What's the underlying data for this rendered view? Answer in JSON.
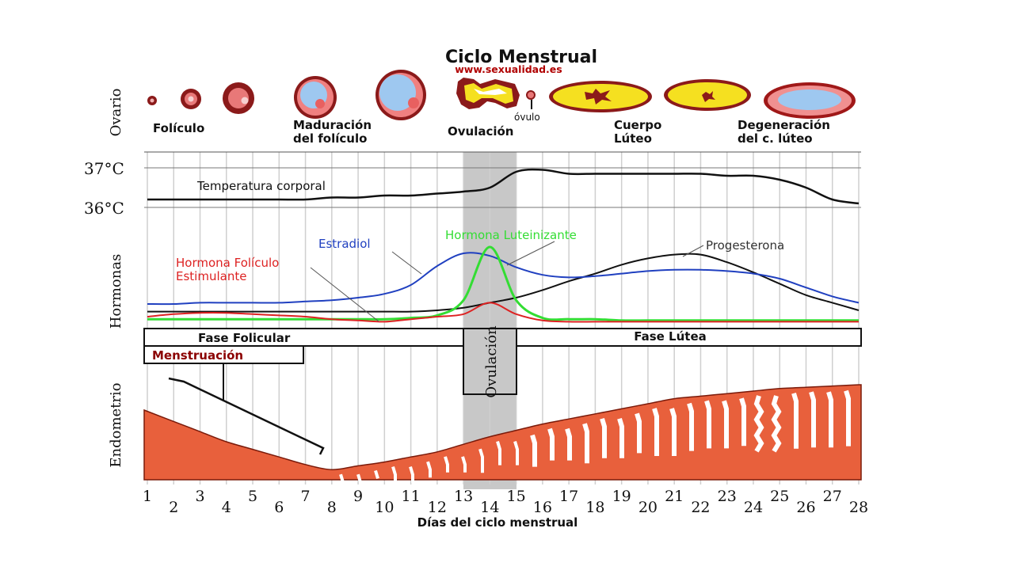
{
  "title": "Ciclo Menstrual",
  "website": "www.sexualidad.es",
  "ovary_label": "Ovario",
  "ovary_stages": {
    "foliculo": "Folículo",
    "maduracion_1": "Maduración",
    "maduracion_2": "del folículo",
    "ovulo": "óvulo",
    "ovulacion": "Ovulación",
    "cuerpo_1": "Cuerpo",
    "cuerpo_2": "Lúteo",
    "degeneracion_1": "Degeneración",
    "degeneracion_2": "del c. lúteo"
  },
  "temperature": {
    "label": "Temperatura corporal",
    "high": "37°C",
    "low": "36°C"
  },
  "hormones": {
    "axis_label": "Hormonas",
    "estradiol": "Estradiol",
    "lh": "Hormona Luteinizante",
    "progesterone": "Progesterona",
    "fsh_1": "Hormona Folículo",
    "fsh_2": "Estimulante"
  },
  "phases": {
    "follicular": "Fase Folicular",
    "ovulation": "Ovulación",
    "luteal": "Fase Lútea",
    "menstruation": "Menstruación"
  },
  "endometrium_label": "Endometrio",
  "x_axis_label": "Días del ciclo menstrual",
  "colors": {
    "estradiol": "#2040c0",
    "lh": "#33dd33",
    "fsh": "#dd2222",
    "progesterone": "#111111",
    "endometrium": "#e8603c",
    "ovulation_band": "#c8c8c8"
  },
  "chart_data": {
    "type": "line",
    "x": [
      1,
      2,
      3,
      4,
      5,
      6,
      7,
      8,
      9,
      10,
      11,
      12,
      13,
      14,
      15,
      16,
      17,
      18,
      19,
      20,
      21,
      22,
      23,
      24,
      25,
      26,
      27,
      28
    ],
    "xlabel": "Días del ciclo menstrual",
    "ovulation_days": [
      13,
      15
    ],
    "series": [
      {
        "name": "Temperatura corporal",
        "unit": "°C",
        "values": [
          36.2,
          36.2,
          36.2,
          36.2,
          36.2,
          36.2,
          36.2,
          36.25,
          36.25,
          36.3,
          36.3,
          36.35,
          36.4,
          36.5,
          36.9,
          36.95,
          36.85,
          36.85,
          36.85,
          36.85,
          36.85,
          36.85,
          36.8,
          36.8,
          36.7,
          36.5,
          36.2,
          36.1
        ]
      },
      {
        "name": "Estradiol",
        "values": [
          1.5,
          1.5,
          1.6,
          1.6,
          1.6,
          1.6,
          1.7,
          1.8,
          2.0,
          2.3,
          3.0,
          4.5,
          5.5,
          5.3,
          4.4,
          3.8,
          3.6,
          3.7,
          3.9,
          4.1,
          4.2,
          4.2,
          4.1,
          3.9,
          3.5,
          2.8,
          2.1,
          1.6
        ]
      },
      {
        "name": "Hormona Luteinizante",
        "values": [
          0.3,
          0.3,
          0.3,
          0.3,
          0.3,
          0.3,
          0.3,
          0.3,
          0.3,
          0.3,
          0.4,
          0.6,
          1.8,
          6.0,
          1.8,
          0.4,
          0.3,
          0.3,
          0.2,
          0.2,
          0.2,
          0.2,
          0.2,
          0.2,
          0.2,
          0.2,
          0.2,
          0.2
        ]
      },
      {
        "name": "Hormona Folículo Estimulante",
        "values": [
          0.5,
          0.7,
          0.8,
          0.8,
          0.7,
          0.6,
          0.5,
          0.3,
          0.2,
          0.1,
          0.3,
          0.5,
          0.7,
          1.6,
          0.7,
          0.2,
          0.1,
          0.1,
          0.1,
          0.1,
          0.1,
          0.1,
          0.1,
          0.1,
          0.1,
          0.1,
          0.1,
          0.1
        ]
      },
      {
        "name": "Progesterona",
        "values": [
          0.9,
          0.9,
          0.9,
          0.9,
          0.9,
          0.9,
          0.9,
          0.9,
          0.9,
          0.9,
          0.9,
          1.0,
          1.2,
          1.6,
          2.0,
          2.6,
          3.3,
          3.9,
          4.6,
          5.1,
          5.4,
          5.4,
          4.8,
          4.0,
          3.1,
          2.2,
          1.6,
          1.0
        ]
      },
      {
        "name": "Endometrio",
        "values": [
          5.5,
          4.6,
          3.8,
          3.0,
          2.4,
          1.8,
          1.2,
          0.8,
          1.1,
          1.4,
          1.8,
          2.2,
          2.8,
          3.4,
          3.9,
          4.4,
          4.8,
          5.2,
          5.6,
          6.0,
          6.4,
          6.6,
          6.8,
          7.0,
          7.2,
          7.3,
          7.4,
          7.5
        ]
      }
    ]
  }
}
